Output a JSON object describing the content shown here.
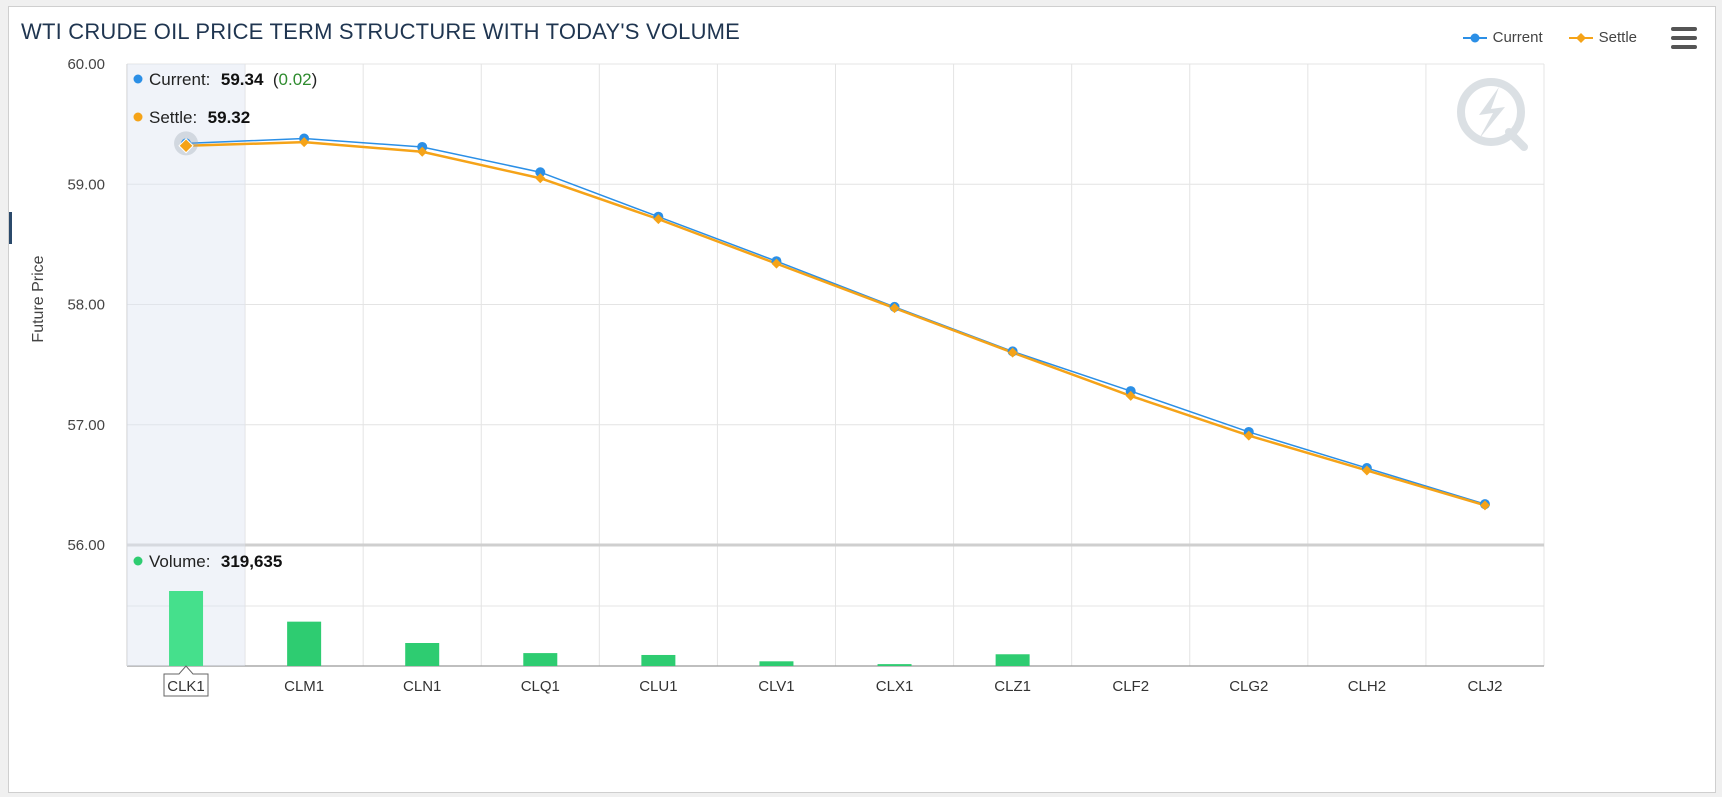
{
  "chart_data": {
    "type": "line",
    "title": "WTI CRUDE OIL PRICE TERM STRUCTURE WITH TODAY'S VOLUME",
    "ylabel": "Future Price",
    "ylim": [
      56.0,
      60.0
    ],
    "yticks": [
      "60.00",
      "59.00",
      "58.00",
      "57.00",
      "56.00"
    ],
    "categories": [
      "CLK1",
      "CLM1",
      "CLN1",
      "CLQ1",
      "CLU1",
      "CLV1",
      "CLX1",
      "CLZ1",
      "CLF2",
      "CLG2",
      "CLH2",
      "CLJ2"
    ],
    "series": [
      {
        "name": "Current",
        "color": "#2b8fe6",
        "values": [
          59.34,
          59.38,
          59.31,
          59.1,
          58.73,
          58.36,
          57.98,
          57.61,
          57.28,
          56.94,
          56.64,
          56.34
        ]
      },
      {
        "name": "Settle",
        "color": "#f5a318",
        "values": [
          59.32,
          59.35,
          59.27,
          59.05,
          58.71,
          58.34,
          57.97,
          57.6,
          57.24,
          56.91,
          56.62,
          56.33
        ]
      }
    ],
    "volume": {
      "name": "Volume",
      "color": "#2ecc71",
      "values": [
        319635,
        189000,
        98000,
        55000,
        47000,
        20000,
        8000,
        50000,
        0,
        0,
        0,
        0
      ]
    },
    "highlight_index": 0
  },
  "tooltip": {
    "current_label": "Current:",
    "current_value": "59.34",
    "current_open": "(",
    "current_change": "0.02",
    "current_close": ")",
    "settle_label": "Settle:",
    "settle_value": "59.32",
    "volume_label": "Volume:",
    "volume_value": "319,635",
    "category": "CLK1"
  },
  "legend": {
    "current": "Current",
    "settle": "Settle"
  }
}
